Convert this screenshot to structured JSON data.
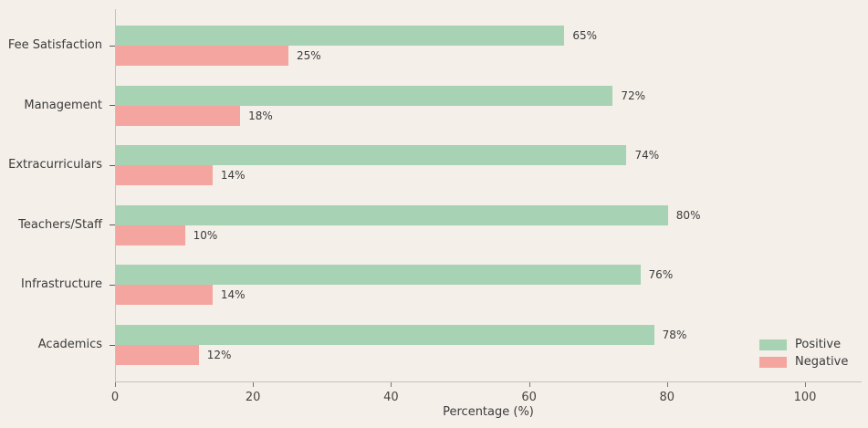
{
  "chart_data": {
    "type": "bar",
    "orientation": "horizontal",
    "title": "",
    "xlabel": "Percentage (%)",
    "ylabel": "",
    "categories": [
      "Fee Satisfaction",
      "Management",
      "Extracurriculars",
      "Teachers/Staff",
      "Infrastructure",
      "Academics"
    ],
    "series": [
      {
        "name": "Positive",
        "color": "#a8d2b4",
        "values": [
          65,
          72,
          74,
          80,
          76,
          78
        ],
        "value_labels": [
          "65%",
          "72%",
          "74%",
          "80%",
          "76%",
          "78%"
        ]
      },
      {
        "name": "Negative",
        "color": "#f5a5a0",
        "values": [
          25,
          18,
          14,
          10,
          14,
          12
        ],
        "value_labels": [
          "25%",
          "18%",
          "14%",
          "10%",
          "14%",
          "12%"
        ]
      }
    ],
    "x_ticks": [
      0,
      20,
      40,
      60,
      80,
      100
    ],
    "x_tick_labels": [
      "0",
      "20",
      "40",
      "60",
      "80",
      "100"
    ],
    "xlim": [
      0,
      108.2
    ],
    "grid": false,
    "background_color": "#f4efe9",
    "legend": {
      "location": "lower right",
      "entries": [
        "Positive",
        "Negative"
      ]
    }
  }
}
